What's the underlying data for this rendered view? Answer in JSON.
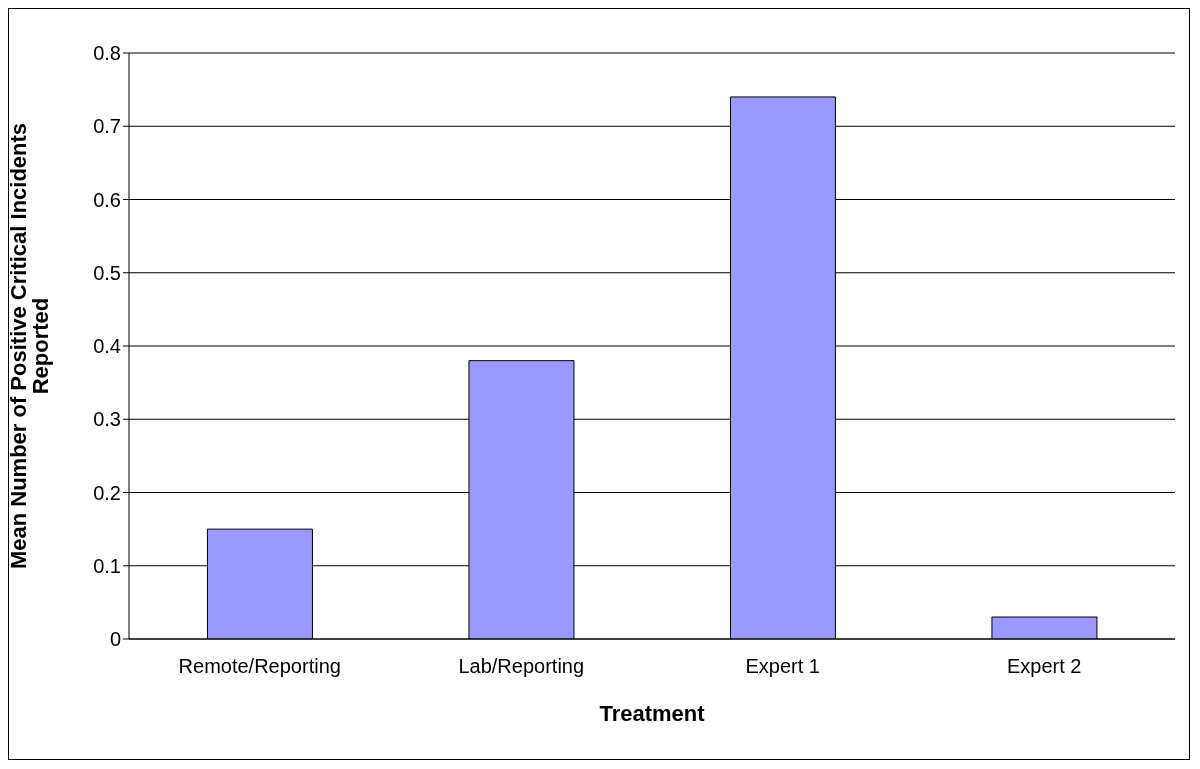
{
  "chart_data": {
    "type": "bar",
    "xlabel": "Treatment",
    "ylabel": "Mean Number of Positive Critical Incidents Reported",
    "categories": [
      "Remote/Reporting",
      "Lab/Reporting",
      "Expert 1",
      "Expert 2"
    ],
    "values": [
      0.15,
      0.38,
      0.74,
      0.03
    ],
    "color": "#9999ff",
    "ylim": [
      0,
      0.8
    ],
    "yticks": [
      0,
      0.1,
      0.2,
      0.3,
      0.4,
      0.5,
      0.6,
      0.7,
      0.8
    ],
    "grid": "y"
  }
}
